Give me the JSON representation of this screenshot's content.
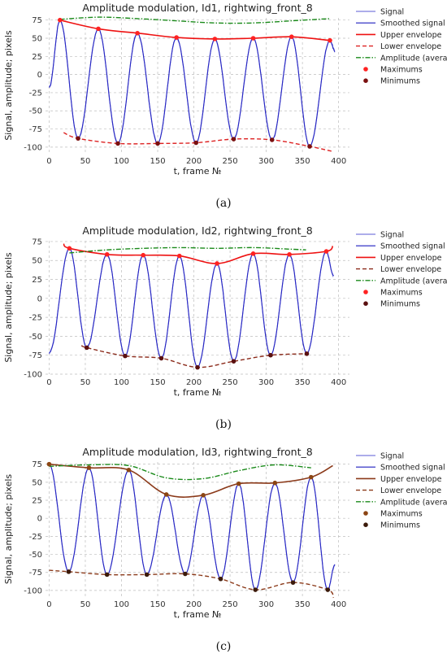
{
  "chart_data": [
    {
      "type": "line",
      "panel_label": "(a)",
      "title": "Amplitude modulation, Id1, rightwing_front_8",
      "xlabel": "t, frame №",
      "ylabel": "Signal, amplitude; pixels",
      "xlim": [
        -5,
        415
      ],
      "ylim": [
        -108,
        78
      ],
      "xticks": [
        0,
        50,
        100,
        150,
        200,
        250,
        300,
        350,
        400
      ],
      "yticks": [
        75,
        50,
        25,
        0,
        -25,
        -50,
        -75,
        -100
      ],
      "grid": true,
      "legend_position": "outside-right",
      "legend": [
        "Signal",
        "Smoothed signal",
        "Upper envelope",
        "Lower envelope",
        "Amplitude (average)",
        "Maximums",
        "Minimums"
      ],
      "colors": {
        "signal": "#5b5bd6",
        "smoothed": "#1f1fbf",
        "upper": "#ee1111",
        "lower": "#dd2222",
        "amplitude": "#1a8a1a",
        "max": "#ff2222",
        "min": "#7a1010"
      },
      "signal_points": [
        [
          0,
          -18
        ],
        [
          15,
          75
        ],
        [
          40,
          -88
        ],
        [
          68,
          63
        ],
        [
          95,
          -95
        ],
        [
          122,
          57
        ],
        [
          150,
          -95
        ],
        [
          176,
          51
        ],
        [
          203,
          -94
        ],
        [
          229,
          49
        ],
        [
          255,
          -89
        ],
        [
          282,
          50
        ],
        [
          308,
          -90
        ],
        [
          335,
          52
        ],
        [
          360,
          -99
        ],
        [
          388,
          47
        ],
        [
          395,
          32
        ]
      ],
      "maximums": [
        [
          15,
          75
        ],
        [
          68,
          63
        ],
        [
          122,
          57
        ],
        [
          176,
          51
        ],
        [
          229,
          49
        ],
        [
          282,
          50
        ],
        [
          335,
          52
        ],
        [
          388,
          47
        ]
      ],
      "minimums": [
        [
          40,
          -88
        ],
        [
          95,
          -95
        ],
        [
          150,
          -95
        ],
        [
          203,
          -94
        ],
        [
          255,
          -89
        ],
        [
          308,
          -90
        ],
        [
          360,
          -99
        ]
      ],
      "upper_envelope": [
        [
          15,
          75
        ],
        [
          68,
          63
        ],
        [
          122,
          57
        ],
        [
          176,
          51
        ],
        [
          229,
          49
        ],
        [
          282,
          50
        ],
        [
          335,
          52
        ],
        [
          388,
          47
        ]
      ],
      "lower_envelope": [
        [
          20,
          -80
        ],
        [
          40,
          -88
        ],
        [
          95,
          -95
        ],
        [
          150,
          -95
        ],
        [
          203,
          -94
        ],
        [
          255,
          -89
        ],
        [
          308,
          -90
        ],
        [
          360,
          -99
        ],
        [
          392,
          -106
        ]
      ],
      "amplitude_average": [
        [
          15,
          76
        ],
        [
          68,
          79
        ],
        [
          122,
          77
        ],
        [
          176,
          74
        ],
        [
          229,
          71
        ],
        [
          282,
          71
        ],
        [
          335,
          74
        ],
        [
          388,
          77
        ]
      ]
    },
    {
      "type": "line",
      "panel_label": "(b)",
      "title": "Amplitude modulation, Id2, rightwing_front_8",
      "xlabel": "t, frame №",
      "ylabel": "Signal, amplitude; pixels",
      "xlim": [
        -5,
        415
      ],
      "ylim": [
        -100,
        76
      ],
      "xticks": [
        0,
        50,
        100,
        150,
        200,
        250,
        300,
        350,
        400
      ],
      "yticks": [
        75,
        50,
        25,
        0,
        -25,
        -50,
        -75,
        -100
      ],
      "grid": true,
      "legend_position": "outside-right",
      "legend": [
        "Signal",
        "Smoothed signal",
        "Upper envelope",
        "Lower envelope",
        "Amplitude (average)",
        "Maximums",
        "Minimums"
      ],
      "colors": {
        "signal": "#5b5bd6",
        "smoothed": "#1f1fbf",
        "upper": "#ee1111",
        "lower": "#8b2a1a",
        "amplitude": "#1a8a1a",
        "max": "#ff2222",
        "min": "#5a1010"
      },
      "signal_points": [
        [
          0,
          -72
        ],
        [
          28,
          66
        ],
        [
          52,
          -65
        ],
        [
          80,
          58
        ],
        [
          105,
          -76
        ],
        [
          130,
          57
        ],
        [
          155,
          -79
        ],
        [
          180,
          56
        ],
        [
          205,
          -91
        ],
        [
          232,
          46
        ],
        [
          255,
          -83
        ],
        [
          282,
          59
        ],
        [
          306,
          -75
        ],
        [
          332,
          58
        ],
        [
          356,
          -73
        ],
        [
          383,
          62
        ],
        [
          393,
          30
        ]
      ],
      "maximums": [
        [
          28,
          66
        ],
        [
          80,
          58
        ],
        [
          130,
          57
        ],
        [
          180,
          56
        ],
        [
          232,
          46
        ],
        [
          282,
          59
        ],
        [
          332,
          58
        ],
        [
          383,
          62
        ]
      ],
      "minimums": [
        [
          52,
          -65
        ],
        [
          105,
          -76
        ],
        [
          155,
          -79
        ],
        [
          205,
          -91
        ],
        [
          255,
          -83
        ],
        [
          306,
          -75
        ],
        [
          356,
          -73
        ]
      ],
      "upper_envelope": [
        [
          20,
          72
        ],
        [
          28,
          66
        ],
        [
          80,
          58
        ],
        [
          130,
          57
        ],
        [
          180,
          56
        ],
        [
          232,
          46
        ],
        [
          282,
          59
        ],
        [
          332,
          58
        ],
        [
          383,
          62
        ],
        [
          392,
          69
        ]
      ],
      "lower_envelope": [
        [
          45,
          -62
        ],
        [
          52,
          -65
        ],
        [
          105,
          -76
        ],
        [
          155,
          -79
        ],
        [
          205,
          -91
        ],
        [
          255,
          -83
        ],
        [
          306,
          -75
        ],
        [
          356,
          -73
        ]
      ],
      "amplitude_average": [
        [
          28,
          60
        ],
        [
          80,
          64
        ],
        [
          130,
          66
        ],
        [
          180,
          67
        ],
        [
          232,
          66
        ],
        [
          282,
          67
        ],
        [
          332,
          65
        ],
        [
          355,
          64
        ]
      ]
    },
    {
      "type": "line",
      "panel_label": "(c)",
      "title": "Amplitude modulation, Id3, rightwing_front_8",
      "xlabel": "t, frame №",
      "ylabel": "Signal, amplitude; pixels",
      "xlim": [
        -5,
        415
      ],
      "ylim": [
        -108,
        78
      ],
      "xticks": [
        0,
        50,
        100,
        150,
        200,
        250,
        300,
        350,
        400
      ],
      "yticks": [
        75,
        50,
        25,
        0,
        -25,
        -50,
        -75,
        -100
      ],
      "grid": true,
      "legend_position": "outside-right",
      "legend": [
        "Signal",
        "Smoothed signal",
        "Upper envelope",
        "Lower envelope",
        "Amplitude (average)",
        "Maximums",
        "Minimums"
      ],
      "colors": {
        "signal": "#5b5bd6",
        "smoothed": "#1f1fbf",
        "upper": "#8b3a1a",
        "lower": "#8b3a1a",
        "amplitude": "#1a8a1a",
        "max": "#8b4513",
        "min": "#3b1a0a"
      },
      "signal_points": [
        [
          0,
          75
        ],
        [
          27,
          -74
        ],
        [
          55,
          70
        ],
        [
          80,
          -78
        ],
        [
          110,
          67
        ],
        [
          135,
          -78
        ],
        [
          162,
          33
        ],
        [
          188,
          -77
        ],
        [
          213,
          32
        ],
        [
          237,
          -84
        ],
        [
          262,
          48
        ],
        [
          285,
          -99
        ],
        [
          312,
          49
        ],
        [
          337,
          -89
        ],
        [
          362,
          57
        ],
        [
          385,
          -99
        ],
        [
          395,
          -64
        ]
      ],
      "maximums": [
        [
          0,
          75
        ],
        [
          55,
          70
        ],
        [
          110,
          67
        ],
        [
          162,
          33
        ],
        [
          213,
          32
        ],
        [
          262,
          48
        ],
        [
          312,
          49
        ],
        [
          362,
          57
        ]
      ],
      "minimums": [
        [
          27,
          -74
        ],
        [
          80,
          -78
        ],
        [
          135,
          -78
        ],
        [
          188,
          -77
        ],
        [
          237,
          -84
        ],
        [
          285,
          -99
        ],
        [
          337,
          -89
        ],
        [
          385,
          -99
        ]
      ],
      "upper_envelope": [
        [
          0,
          75
        ],
        [
          55,
          70
        ],
        [
          110,
          67
        ],
        [
          162,
          33
        ],
        [
          213,
          32
        ],
        [
          262,
          48
        ],
        [
          312,
          49
        ],
        [
          362,
          57
        ],
        [
          392,
          73
        ]
      ],
      "lower_envelope": [
        [
          0,
          -72
        ],
        [
          27,
          -74
        ],
        [
          80,
          -78
        ],
        [
          135,
          -78
        ],
        [
          188,
          -77
        ],
        [
          237,
          -84
        ],
        [
          285,
          -99
        ],
        [
          337,
          -89
        ],
        [
          385,
          -99
        ],
        [
          393,
          -110
        ]
      ],
      "amplitude_average": [
        [
          0,
          72
        ],
        [
          55,
          74
        ],
        [
          110,
          73
        ],
        [
          162,
          56
        ],
        [
          213,
          55
        ],
        [
          262,
          66
        ],
        [
          312,
          74
        ],
        [
          362,
          70
        ]
      ]
    }
  ]
}
